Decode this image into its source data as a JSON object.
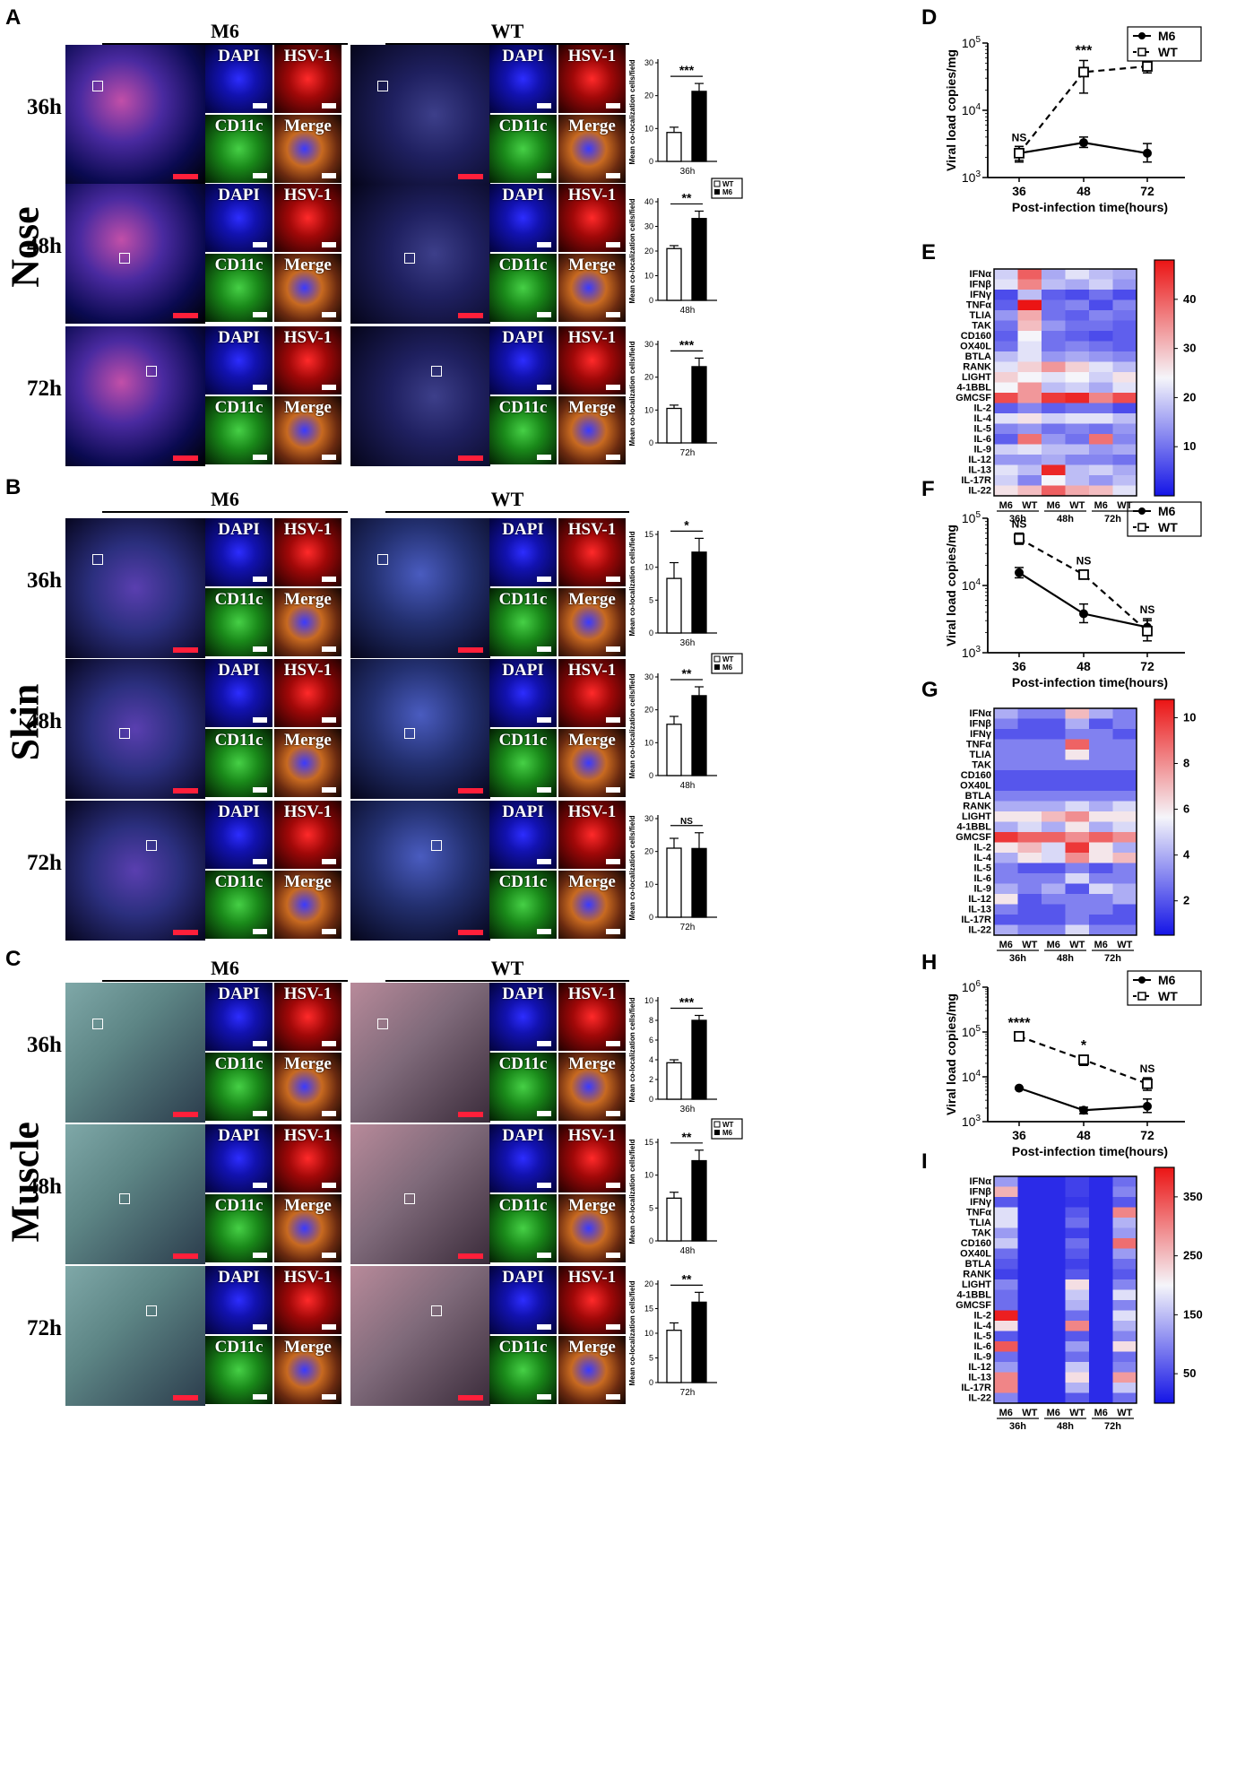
{
  "panel_labels": {
    "A": "A",
    "B": "B",
    "C": "C",
    "D": "D",
    "E": "E",
    "F": "F",
    "G": "G",
    "H": "H",
    "I": "I"
  },
  "tissues": [
    "Nose",
    "Skin",
    "Muscle"
  ],
  "groups": {
    "m6": "M6",
    "wt": "WT"
  },
  "times": [
    "36h",
    "48h",
    "72h"
  ],
  "channels": {
    "dapi": "DAPI",
    "hsv": "HSV-1",
    "cd11c": "CD11c",
    "merge": "Merge"
  },
  "bar_ylabel": "Mean co-localization cells/field",
  "legend": {
    "wt": "WT",
    "m6": "M6"
  },
  "colors": {
    "dapi": "#1a1aff",
    "hsv": "#e01010",
    "cd11c": "#22b822",
    "scale_red": "#ff1f3a",
    "scale_white": "#ffffff"
  },
  "chart_data": [
    {
      "id": "A-36h",
      "type": "bar",
      "categories": [
        "WT",
        "M6"
      ],
      "values": [
        8.8,
        21.3
      ],
      "errors": [
        1.6,
        2.4
      ],
      "ylim": [
        0,
        30
      ],
      "yticks": [
        0,
        10,
        20,
        30
      ],
      "xlabel": "36h",
      "sig": "***"
    },
    {
      "id": "A-48h",
      "type": "bar",
      "categories": [
        "WT",
        "M6"
      ],
      "values": [
        21,
        33.2
      ],
      "errors": [
        1.2,
        3.0
      ],
      "ylim": [
        0,
        40
      ],
      "yticks": [
        0,
        10,
        20,
        30,
        40
      ],
      "xlabel": "48h",
      "sig": "**"
    },
    {
      "id": "A-72h",
      "type": "bar",
      "categories": [
        "WT",
        "M6"
      ],
      "values": [
        10.5,
        23.2
      ],
      "errors": [
        1.0,
        2.6
      ],
      "ylim": [
        0,
        30
      ],
      "yticks": [
        0,
        10,
        20,
        30
      ],
      "xlabel": "72h",
      "sig": "***"
    },
    {
      "id": "B-36h",
      "type": "bar",
      "categories": [
        "WT",
        "M6"
      ],
      "values": [
        8.3,
        12.3
      ],
      "errors": [
        2.4,
        2.1
      ],
      "ylim": [
        0,
        15
      ],
      "yticks": [
        0,
        5,
        10,
        15
      ],
      "xlabel": "36h",
      "sig": "*"
    },
    {
      "id": "B-48h",
      "type": "bar",
      "categories": [
        "WT",
        "M6"
      ],
      "values": [
        15.6,
        24.3
      ],
      "errors": [
        2.4,
        2.7
      ],
      "ylim": [
        0,
        30
      ],
      "yticks": [
        0,
        10,
        20,
        30
      ],
      "xlabel": "48h",
      "sig": "**"
    },
    {
      "id": "B-72h",
      "type": "bar",
      "categories": [
        "WT",
        "M6"
      ],
      "values": [
        21,
        20.9
      ],
      "errors": [
        3.0,
        4.8
      ],
      "ylim": [
        0,
        30
      ],
      "yticks": [
        0,
        10,
        20,
        30
      ],
      "xlabel": "72h",
      "sig": "NS"
    },
    {
      "id": "C-36h",
      "type": "bar",
      "categories": [
        "WT",
        "M6"
      ],
      "values": [
        3.7,
        8.0
      ],
      "errors": [
        0.3,
        0.5
      ],
      "ylim": [
        0,
        10
      ],
      "yticks": [
        0,
        2,
        4,
        6,
        8,
        10
      ],
      "xlabel": "36h",
      "sig": "***"
    },
    {
      "id": "C-48h",
      "type": "bar",
      "categories": [
        "WT",
        "M6"
      ],
      "values": [
        6.5,
        12.2
      ],
      "errors": [
        0.9,
        1.6
      ],
      "ylim": [
        0,
        15
      ],
      "yticks": [
        0,
        5,
        10,
        15
      ],
      "xlabel": "48h",
      "sig": "**"
    },
    {
      "id": "C-72h",
      "type": "bar",
      "categories": [
        "WT",
        "M6"
      ],
      "values": [
        10.6,
        16.3
      ],
      "errors": [
        1.5,
        2.0
      ],
      "ylim": [
        0,
        20
      ],
      "yticks": [
        0,
        5,
        10,
        15,
        20
      ],
      "xlabel": "72h",
      "sig": "**"
    },
    {
      "id": "D",
      "type": "line",
      "x": [
        36,
        48,
        72
      ],
      "xlabel": "Post-infection time(hours)",
      "ylabel": "Viral load  copies/mg",
      "yscale": "log",
      "ylim": [
        1000,
        100000
      ],
      "series": [
        {
          "name": "M6",
          "values": [
            2300,
            3300,
            2300
          ],
          "errors": [
            [
              1800,
              2900
            ],
            [
              2800,
              4000
            ],
            [
              1700,
              3200
            ]
          ]
        },
        {
          "name": "WT",
          "values": [
            2300,
            37000,
            45000
          ],
          "errors": [
            [
              1700,
              2900
            ],
            [
              18000,
              55000
            ],
            [
              36000,
              55000
            ]
          ]
        }
      ],
      "annotations": [
        "NS",
        "***",
        "****"
      ]
    },
    {
      "id": "F",
      "type": "line",
      "x": [
        36,
        48,
        72
      ],
      "xlabel": "Post-infection time(hours)",
      "ylabel": "Viral load  copies/mg",
      "yscale": "log",
      "ylim": [
        1000,
        100000
      ],
      "series": [
        {
          "name": "M6",
          "values": [
            15500,
            3800,
            2400
          ],
          "errors": [
            [
              13000,
              18500
            ],
            [
              2800,
              5300
            ],
            [
              1800,
              3000
            ]
          ]
        },
        {
          "name": "WT",
          "values": [
            50000,
            14500,
            2100
          ],
          "errors": [
            [
              41000,
              60000
            ],
            [
              12500,
              17000
            ],
            [
              1500,
              3200
            ]
          ]
        }
      ],
      "annotations": [
        "NS",
        "NS",
        "NS"
      ]
    },
    {
      "id": "H",
      "type": "line",
      "x": [
        36,
        48,
        72
      ],
      "xlabel": "Post-infection time(hours)",
      "ylabel": "Viral load  copies/mg",
      "yscale": "log",
      "ylim": [
        1000,
        1000000
      ],
      "series": [
        {
          "name": "M6",
          "values": [
            5600,
            1800,
            2200
          ],
          "errors": [
            [
              5400,
              5800
            ],
            [
              1500,
              2100
            ],
            [
              1600,
              3200
            ]
          ]
        },
        {
          "name": "WT",
          "values": [
            80000,
            24000,
            7000
          ],
          "errors": [
            [
              64000,
              96000
            ],
            [
              18000,
              30000
            ],
            [
              5000,
              9500
            ]
          ]
        }
      ],
      "annotations": [
        "****",
        "*",
        "NS"
      ]
    },
    {
      "id": "E",
      "type": "heatmap",
      "rows": [
        "IFNα",
        "IFNβ",
        "IFNγ",
        "TNFα",
        "TLIA",
        "TAK",
        "CD160",
        "OX40L",
        "BTLA",
        "RANK",
        "LIGHT",
        "4-1BBL",
        "GMCSF",
        "IL-2",
        "IL-4",
        "IL-5",
        "IL-6",
        "IL-9",
        "IL-12",
        "IL-13",
        "IL-17R",
        "IL-22"
      ],
      "columns": [
        "M6",
        "WT",
        "M6",
        "WT",
        "M6",
        "WT"
      ],
      "column_groups": [
        "36h",
        "48h",
        "72h"
      ],
      "colorbar": {
        "min": 0,
        "max": 48,
        "ticks": [
          10,
          20,
          30,
          40
        ]
      },
      "values": [
        [
          20,
          40,
          16,
          22,
          18,
          16
        ],
        [
          22,
          36,
          18,
          16,
          20,
          14
        ],
        [
          6,
          18,
          8,
          6,
          10,
          6
        ],
        [
          8,
          48,
          10,
          12,
          6,
          12
        ],
        [
          14,
          32,
          10,
          8,
          12,
          10
        ],
        [
          10,
          30,
          14,
          10,
          10,
          8
        ],
        [
          8,
          24,
          10,
          8,
          6,
          8
        ],
        [
          10,
          22,
          10,
          12,
          10,
          8
        ],
        [
          18,
          22,
          14,
          16,
          14,
          12
        ],
        [
          22,
          28,
          34,
          28,
          22,
          18
        ],
        [
          28,
          24,
          22,
          24,
          20,
          26
        ],
        [
          24,
          34,
          18,
          20,
          16,
          22
        ],
        [
          42,
          34,
          44,
          46,
          36,
          42
        ],
        [
          8,
          12,
          8,
          10,
          10,
          6
        ],
        [
          22,
          26,
          20,
          22,
          22,
          18
        ],
        [
          12,
          14,
          10,
          12,
          10,
          14
        ],
        [
          8,
          38,
          14,
          10,
          38,
          12
        ],
        [
          20,
          22,
          18,
          18,
          14,
          16
        ],
        [
          14,
          14,
          16,
          12,
          12,
          10
        ],
        [
          22,
          18,
          46,
          18,
          20,
          16
        ],
        [
          20,
          12,
          24,
          18,
          14,
          18
        ],
        [
          26,
          30,
          40,
          32,
          30,
          22
        ]
      ]
    },
    {
      "id": "G",
      "type": "heatmap",
      "rows": [
        "IFNα",
        "IFNβ",
        "IFNγ",
        "TNFα",
        "TLIA",
        "TAK",
        "CD160",
        "OX40L",
        "BTLA",
        "RANK",
        "LIGHT",
        "4-1BBL",
        "GMCSF",
        "IL-2",
        "IL-4",
        "IL-5",
        "IL-6",
        "IL-9",
        "IL-12",
        "IL-13",
        "IL-17R",
        "IL-22"
      ],
      "columns": [
        "M6",
        "WT",
        "M6",
        "WT",
        "M6",
        "WT"
      ],
      "column_groups": [
        "36h",
        "48h",
        "72h"
      ],
      "colorbar": {
        "min": 0.5,
        "max": 10.8,
        "ticks": [
          2,
          4,
          6,
          8,
          10
        ]
      },
      "values": [
        [
          4,
          3,
          3,
          7,
          4,
          3
        ],
        [
          3,
          2,
          2,
          4,
          2,
          3
        ],
        [
          2,
          2,
          2,
          3,
          3,
          2
        ],
        [
          3,
          3,
          3,
          9,
          3,
          3
        ],
        [
          3,
          3,
          3,
          6,
          3,
          3
        ],
        [
          3,
          3,
          3,
          3,
          3,
          3
        ],
        [
          2,
          2,
          2,
          2,
          2,
          2
        ],
        [
          2,
          2,
          2,
          2,
          2,
          2
        ],
        [
          3,
          3,
          3,
          3,
          3,
          3
        ],
        [
          4,
          4,
          4,
          5,
          4,
          5
        ],
        [
          6,
          6,
          7,
          8,
          6,
          6
        ],
        [
          4,
          5,
          4,
          6,
          4,
          5
        ],
        [
          10,
          9,
          9,
          8,
          9,
          8
        ],
        [
          6,
          7,
          5,
          10,
          6,
          4
        ],
        [
          4,
          6,
          5,
          8,
          6,
          7
        ],
        [
          3,
          2,
          2,
          3,
          2,
          3
        ],
        [
          3,
          3,
          3,
          5,
          3,
          3
        ],
        [
          4,
          3,
          4,
          2,
          5,
          4
        ],
        [
          6,
          2,
          3,
          3,
          3,
          4
        ],
        [
          3,
          2,
          2,
          3,
          3,
          2
        ],
        [
          2,
          2,
          2,
          3,
          2,
          2
        ],
        [
          4,
          3,
          3,
          5,
          3,
          3
        ]
      ]
    },
    {
      "id": "I",
      "type": "heatmap",
      "rows": [
        "IFNα",
        "IFNβ",
        "IFNγ",
        "TNFα",
        "TLIA",
        "TAK",
        "CD160",
        "OX40L",
        "BTLA",
        "RANK",
        "LIGHT",
        "4-1BBL",
        "GMCSF",
        "IL-2",
        "IL-4",
        "IL-5",
        "IL-6",
        "IL-9",
        "IL-12",
        "IL-13",
        "IL-17R",
        "IL-22"
      ],
      "columns": [
        "M6",
        "WT",
        "M6",
        "WT",
        "M6",
        "WT"
      ],
      "column_groups": [
        "36h",
        "48h",
        "72h"
      ],
      "colorbar": {
        "min": 0,
        "max": 400,
        "ticks": [
          50,
          150,
          250,
          350
        ]
      },
      "values": [
        [
          120,
          20,
          20,
          40,
          20,
          80
        ],
        [
          260,
          20,
          20,
          40,
          20,
          100
        ],
        [
          60,
          20,
          20,
          30,
          20,
          60
        ],
        [
          180,
          20,
          20,
          60,
          20,
          300
        ],
        [
          180,
          20,
          20,
          80,
          20,
          140
        ],
        [
          120,
          20,
          20,
          40,
          20,
          120
        ],
        [
          160,
          20,
          20,
          80,
          20,
          320
        ],
        [
          80,
          20,
          20,
          60,
          20,
          120
        ],
        [
          60,
          20,
          20,
          40,
          20,
          80
        ],
        [
          40,
          20,
          20,
          60,
          20,
          60
        ],
        [
          100,
          20,
          20,
          220,
          20,
          100
        ],
        [
          80,
          20,
          20,
          160,
          20,
          180
        ],
        [
          80,
          20,
          20,
          140,
          20,
          100
        ],
        [
          390,
          20,
          20,
          80,
          20,
          180
        ],
        [
          220,
          20,
          20,
          300,
          20,
          140
        ],
        [
          60,
          20,
          20,
          60,
          20,
          100
        ],
        [
          340,
          20,
          20,
          120,
          20,
          220
        ],
        [
          80,
          20,
          20,
          80,
          20,
          80
        ],
        [
          120,
          20,
          20,
          160,
          20,
          100
        ],
        [
          300,
          20,
          20,
          220,
          20,
          280
        ],
        [
          300,
          20,
          20,
          140,
          20,
          160
        ],
        [
          100,
          20,
          20,
          60,
          20,
          80
        ]
      ]
    }
  ]
}
